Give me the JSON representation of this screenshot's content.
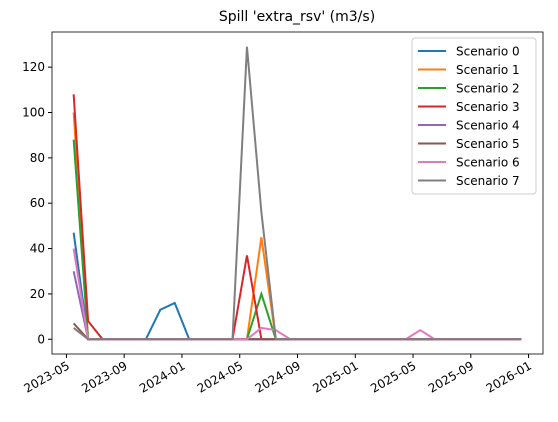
{
  "chart_data": {
    "type": "line",
    "title": "Spill 'extra_rsv' (m3/s)",
    "x": [
      "2023-05",
      "2023-06",
      "2023-07",
      "2023-08",
      "2023-09",
      "2023-10",
      "2023-11",
      "2023-12",
      "2024-01",
      "2024-02",
      "2024-03",
      "2024-04",
      "2024-05",
      "2024-06",
      "2024-07",
      "2024-08",
      "2024-09",
      "2024-10",
      "2024-11",
      "2024-12",
      "2025-01",
      "2025-02",
      "2025-03",
      "2025-04",
      "2025-05",
      "2025-06",
      "2025-07",
      "2025-08",
      "2025-09",
      "2025-10",
      "2025-11",
      "2025-12"
    ],
    "series": [
      {
        "name": "Scenario 0",
        "color": "#1f77b4",
        "values": [
          47,
          0,
          0,
          0,
          0,
          0,
          13,
          16,
          0,
          0,
          0,
          0,
          0,
          0,
          0,
          0,
          0,
          0,
          0,
          0,
          0,
          0,
          0,
          0,
          0,
          0,
          0,
          0,
          0,
          0,
          0,
          0
        ]
      },
      {
        "name": "Scenario 1",
        "color": "#ff7f0e",
        "values": [
          100,
          0,
          0,
          0,
          0,
          0,
          0,
          0,
          0,
          0,
          0,
          0,
          0,
          45,
          0,
          0,
          0,
          0,
          0,
          0,
          0,
          0,
          0,
          0,
          0,
          0,
          0,
          0,
          0,
          0,
          0,
          0
        ]
      },
      {
        "name": "Scenario 2",
        "color": "#2ca02c",
        "values": [
          88,
          0,
          0,
          0,
          0,
          0,
          0,
          0,
          0,
          0,
          0,
          0,
          0,
          20,
          0,
          0,
          0,
          0,
          0,
          0,
          0,
          0,
          0,
          0,
          0,
          0,
          0,
          0,
          0,
          0,
          0,
          0
        ]
      },
      {
        "name": "Scenario 3",
        "color": "#d62728",
        "values": [
          108,
          8,
          0,
          0,
          0,
          0,
          0,
          0,
          0,
          0,
          0,
          0,
          37,
          0,
          0,
          0,
          0,
          0,
          0,
          0,
          0,
          0,
          0,
          0,
          0,
          0,
          0,
          0,
          0,
          0,
          0,
          0
        ]
      },
      {
        "name": "Scenario 4",
        "color": "#9467bd",
        "values": [
          30,
          0,
          0,
          0,
          0,
          0,
          0,
          0,
          0,
          0,
          0,
          0,
          0,
          0,
          0,
          0,
          0,
          0,
          0,
          0,
          0,
          0,
          0,
          0,
          0,
          0,
          0,
          0,
          0,
          0,
          0,
          0
        ]
      },
      {
        "name": "Scenario 5",
        "color": "#8c564b",
        "values": [
          7,
          0,
          0,
          0,
          0,
          0,
          0,
          0,
          0,
          0,
          0,
          0,
          0,
          0,
          0,
          0,
          0,
          0,
          0,
          0,
          0,
          0,
          0,
          0,
          0,
          0,
          0,
          0,
          0,
          0,
          0,
          0
        ]
      },
      {
        "name": "Scenario 6",
        "color": "#e377c2",
        "values": [
          40,
          0,
          0,
          0,
          0,
          0,
          0,
          0,
          0,
          0,
          0,
          0,
          0,
          5,
          4,
          0,
          0,
          0,
          0,
          0,
          0,
          0,
          0,
          0,
          4,
          0,
          0,
          0,
          0,
          0,
          0,
          0
        ]
      },
      {
        "name": "Scenario 7",
        "color": "#7f7f7f",
        "values": [
          5,
          0,
          0,
          0,
          0,
          0,
          0,
          0,
          0,
          0,
          0,
          0,
          129,
          56,
          0,
          0,
          0,
          0,
          0,
          0,
          0,
          0,
          0,
          0,
          0,
          0,
          0,
          0,
          0,
          0,
          0,
          0
        ]
      }
    ],
    "xlim": [
      "2023-04",
      "2026-02"
    ],
    "xticks": [
      "2023-05",
      "2023-09",
      "2024-01",
      "2024-05",
      "2024-09",
      "2025-01",
      "2025-05",
      "2025-09",
      "2026-01"
    ],
    "ylim": [
      -6.5,
      135.5
    ],
    "yticks": [
      0,
      20,
      40,
      60,
      80,
      100,
      120
    ],
    "legend": "upper right"
  }
}
